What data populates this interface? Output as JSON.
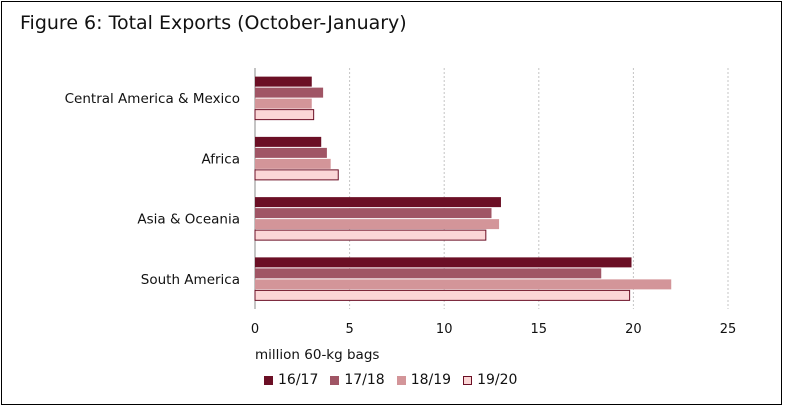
{
  "chart_data": {
    "type": "bar",
    "orientation": "horizontal",
    "title": "Figure 6: Total Exports (October-January)",
    "xlabel": "million 60-kg bags",
    "ylabel": "",
    "xlim": [
      0,
      25
    ],
    "xticks": [
      "0",
      "5",
      "10",
      "15",
      "20",
      "25"
    ],
    "grid": "vertical dashed",
    "legend_position": "bottom",
    "categories": [
      "Central America & Mexico",
      "Africa",
      "Asia & Oceania",
      "South America"
    ],
    "series": [
      {
        "name": "16/17",
        "color": "#6b0f25",
        "values": [
          3.0,
          3.5,
          13.0,
          19.9
        ]
      },
      {
        "name": "17/18",
        "color": "#a05565",
        "values": [
          3.6,
          3.8,
          12.5,
          18.3
        ]
      },
      {
        "name": "18/19",
        "color": "#d39599",
        "values": [
          3.0,
          4.0,
          12.9,
          22.0
        ]
      },
      {
        "name": "19/20",
        "color": "#fbd6d6",
        "values": [
          3.1,
          4.4,
          12.2,
          19.8
        ]
      }
    ]
  }
}
